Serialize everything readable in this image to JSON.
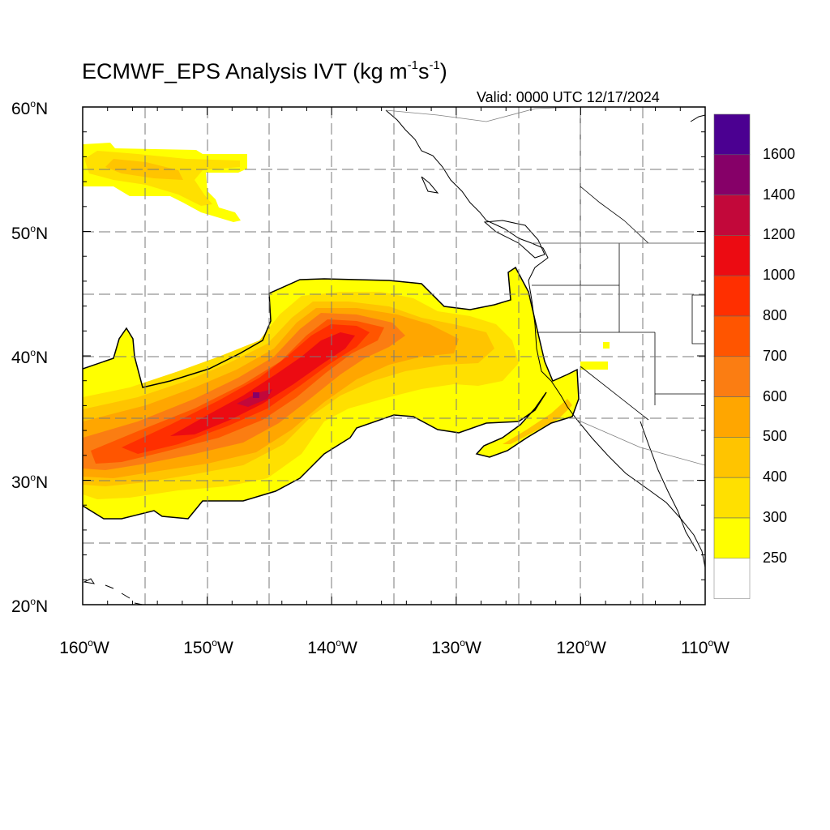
{
  "title": {
    "main": "ECMWF_EPS Analysis IVT (kg m",
    "sup1": "-1",
    "mid": "s",
    "sup2": "-1",
    "end": ")"
  },
  "valid": "Valid: 0000 UTC 12/17/2024",
  "lat_labels": [
    {
      "deg": "60",
      "sym": "o",
      "hemi": "N"
    },
    {
      "deg": "50",
      "sym": "o",
      "hemi": "N"
    },
    {
      "deg": "40",
      "sym": "o",
      "hemi": "N"
    },
    {
      "deg": "30",
      "sym": "o",
      "hemi": "N"
    },
    {
      "deg": "20",
      "sym": "o",
      "hemi": "N"
    }
  ],
  "lon_labels": [
    {
      "deg": "160",
      "sym": "o",
      "hemi": "W"
    },
    {
      "deg": "150",
      "sym": "o",
      "hemi": "W"
    },
    {
      "deg": "140",
      "sym": "o",
      "hemi": "W"
    },
    {
      "deg": "130",
      "sym": "o",
      "hemi": "W"
    },
    {
      "deg": "120",
      "sym": "o",
      "hemi": "W"
    },
    {
      "deg": "110",
      "sym": "o",
      "hemi": "W"
    }
  ],
  "colorbar": {
    "labels": [
      "1600",
      "1400",
      "1200",
      "1000",
      "800",
      "700",
      "600",
      "500",
      "400",
      "300",
      "250"
    ],
    "colors": [
      "#4b0091",
      "#860068",
      "#c2083a",
      "#ec0b12",
      "#ff2f00",
      "#ff5500",
      "#fb7d12",
      "#ffa600",
      "#ffc400",
      "#ffe000",
      "#ffff00",
      "#ffffff"
    ]
  },
  "map_colors": {
    "c250": "#ffff00",
    "c300": "#ffe000",
    "c400": "#ffc400",
    "c500": "#ffa600",
    "c600": "#fb7d12",
    "c700": "#ff5500",
    "c800": "#ff2f00",
    "c1000": "#ec0b12",
    "c1200": "#c2083a",
    "c1400": "#860068"
  }
}
